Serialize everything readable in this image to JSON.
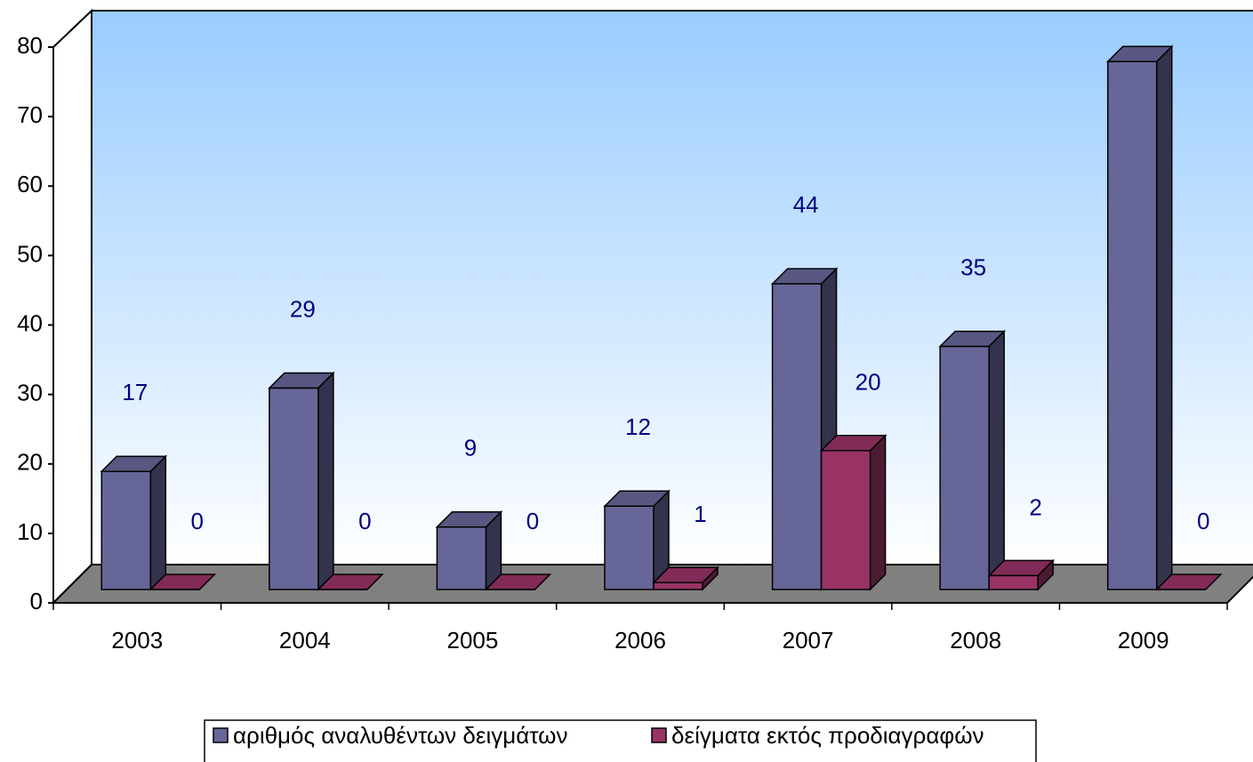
{
  "chart_data": {
    "type": "bar3d",
    "categories": [
      "2003",
      "2004",
      "2005",
      "2006",
      "2007",
      "2008",
      "2009"
    ],
    "series": [
      {
        "name": "αριθμός αναλυθέντων δειγμάτων",
        "color": "#666699",
        "values": [
          17,
          29,
          9,
          12,
          44,
          35,
          76
        ]
      },
      {
        "name": "δείγματα εκτός προδιαγραφών",
        "color": "#993366",
        "values": [
          0,
          0,
          0,
          1,
          20,
          2,
          0
        ]
      }
    ],
    "ylim": [
      0,
      80
    ],
    "yticks": [
      0,
      10,
      20,
      30,
      40,
      50,
      60,
      70,
      80
    ],
    "grid": false,
    "legend": "bottom"
  }
}
